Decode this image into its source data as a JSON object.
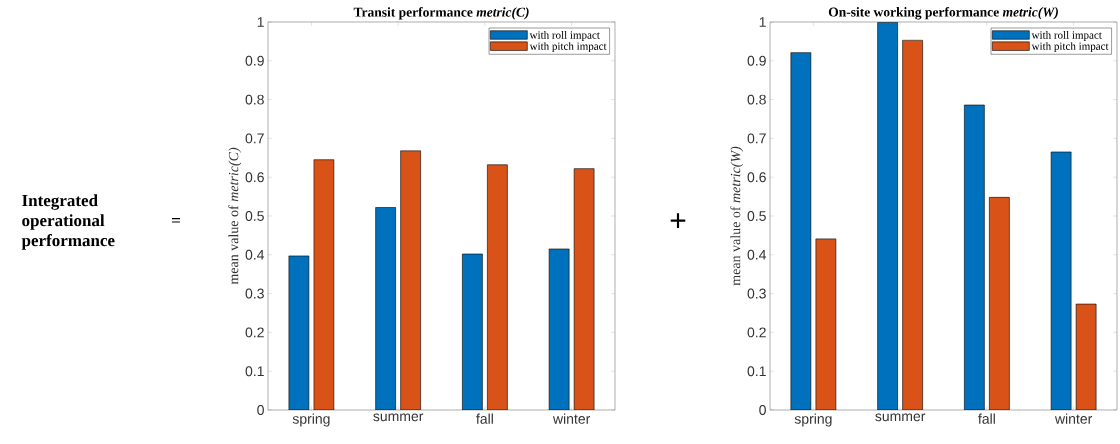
{
  "chart_data": [
    {
      "type": "other",
      "annotations": [
        "Integrated operational performance",
        "="
      ]
    },
    {
      "type": "bar",
      "title": "Transit performance *metric(C)*",
      "ylabel": "mean value of *metric(C)*",
      "categories": [
        "spring",
        "summer",
        "fall",
        "winter"
      ],
      "series": [
        {
          "name": "with roll impact",
          "color": "#0072bd",
          "values": [
            0.397,
            0.522,
            0.402,
            0.415
          ]
        },
        {
          "name": "with pitch impact",
          "color": "#d95319",
          "values": [
            0.645,
            0.668,
            0.632,
            0.622
          ]
        }
      ],
      "ylim": [
        0,
        1
      ],
      "yticks": [
        0,
        0.1,
        0.2,
        0.3,
        0.4,
        0.5,
        0.6,
        0.7,
        0.8,
        0.9,
        1
      ],
      "legend": "top right"
    },
    {
      "type": "other",
      "annotations": [
        "+"
      ]
    },
    {
      "type": "bar",
      "title": "On-site working performance *metric(W)*",
      "ylabel": "mean value of *metric(W)*",
      "categories": [
        "spring",
        "summer",
        "fall",
        "winter"
      ],
      "series": [
        {
          "name": "with roll impact",
          "color": "#0072bd",
          "values": [
            0.921,
            0.999,
            0.786,
            0.665
          ]
        },
        {
          "name": "with pitch impact",
          "color": "#d95319",
          "values": [
            0.441,
            0.953,
            0.548,
            0.273
          ]
        }
      ],
      "ylim": [
        0,
        1
      ],
      "yticks": [
        0,
        0.1,
        0.2,
        0.3,
        0.4,
        0.5,
        0.6,
        0.7,
        0.8,
        0.9,
        1
      ],
      "legend": "top right"
    }
  ]
}
